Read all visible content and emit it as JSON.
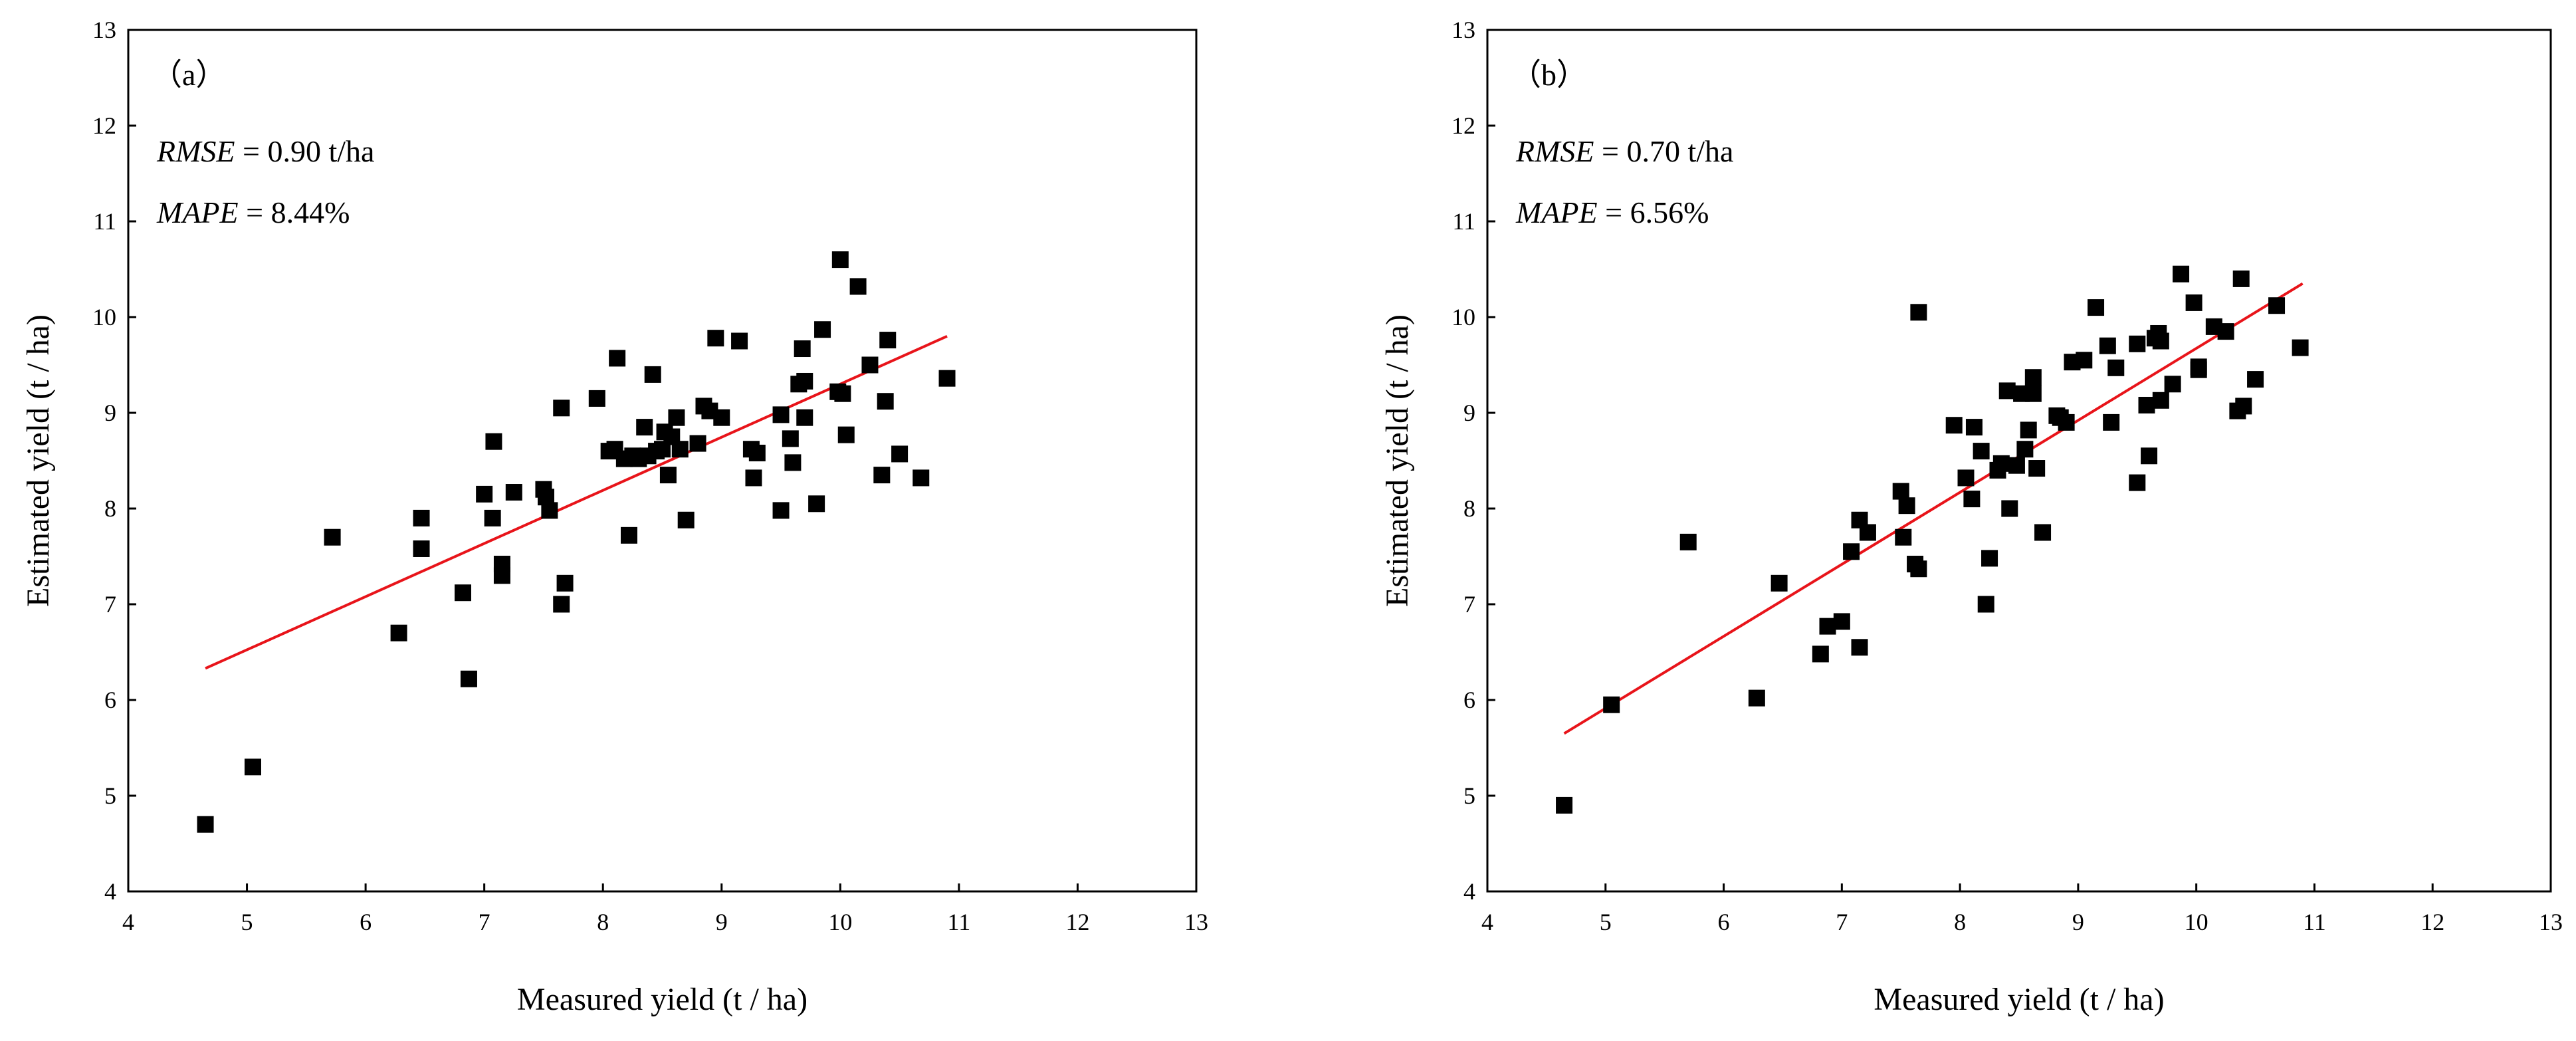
{
  "chart_data": [
    {
      "type": "scatter",
      "panel_label": "（a）",
      "xlabel": "Measured yield (t / ha)",
      "ylabel": "Estimated yield (t / ha)",
      "xlim": [
        4,
        13
      ],
      "ylim": [
        4,
        13
      ],
      "xticks": [
        "4",
        "5",
        "6",
        "7",
        "8",
        "9",
        "10",
        "11",
        "12",
        "13"
      ],
      "yticks": [
        "4",
        "5",
        "6",
        "7",
        "8",
        "9",
        "10",
        "11",
        "12",
        "13"
      ],
      "stats": [
        {
          "name": "RMSE",
          "value": " = 0.90 t/ha"
        },
        {
          "name": "MAPE",
          "value": " = 8.44%"
        }
      ],
      "fit_line": {
        "x": [
          4.65,
          10.9
        ],
        "y": [
          6.33,
          9.8
        ],
        "color": "#e8141a"
      },
      "marker_color": "#000000",
      "points": [
        [
          4.65,
          4.7
        ],
        [
          5.05,
          5.3
        ],
        [
          5.72,
          7.7
        ],
        [
          6.28,
          6.7
        ],
        [
          6.47,
          7.9
        ],
        [
          6.47,
          7.58
        ],
        [
          6.82,
          7.12
        ],
        [
          6.87,
          6.22
        ],
        [
          7.0,
          8.15
        ],
        [
          7.07,
          7.9
        ],
        [
          7.08,
          8.7
        ],
        [
          7.15,
          7.42
        ],
        [
          7.15,
          7.3
        ],
        [
          7.25,
          8.17
        ],
        [
          7.5,
          8.2
        ],
        [
          7.52,
          8.12
        ],
        [
          7.55,
          7.98
        ],
        [
          7.65,
          9.05
        ],
        [
          7.65,
          7.0
        ],
        [
          7.68,
          7.22
        ],
        [
          7.95,
          9.15
        ],
        [
          8.05,
          8.6
        ],
        [
          8.1,
          8.62
        ],
        [
          8.12,
          9.57
        ],
        [
          8.18,
          8.52
        ],
        [
          8.22,
          7.72
        ],
        [
          8.25,
          8.55
        ],
        [
          8.3,
          8.52
        ],
        [
          8.35,
          8.85
        ],
        [
          8.38,
          8.55
        ],
        [
          8.42,
          9.4
        ],
        [
          8.45,
          8.6
        ],
        [
          8.5,
          8.62
        ],
        [
          8.52,
          8.8
        ],
        [
          8.55,
          8.35
        ],
        [
          8.58,
          8.75
        ],
        [
          8.62,
          8.95
        ],
        [
          8.65,
          8.62
        ],
        [
          8.7,
          7.88
        ],
        [
          8.8,
          8.68
        ],
        [
          8.85,
          9.07
        ],
        [
          8.9,
          9.02
        ],
        [
          8.95,
          9.78
        ],
        [
          9.0,
          8.95
        ],
        [
          9.15,
          9.75
        ],
        [
          9.25,
          8.62
        ],
        [
          9.27,
          8.32
        ],
        [
          9.3,
          8.58
        ],
        [
          9.5,
          8.98
        ],
        [
          9.5,
          7.98
        ],
        [
          9.58,
          8.73
        ],
        [
          9.6,
          8.48
        ],
        [
          9.65,
          9.3
        ],
        [
          9.68,
          9.67
        ],
        [
          9.7,
          9.33
        ],
        [
          9.7,
          8.95
        ],
        [
          9.8,
          8.05
        ],
        [
          9.85,
          9.87
        ],
        [
          9.98,
          9.22
        ],
        [
          10.0,
          10.6
        ],
        [
          10.02,
          9.2
        ],
        [
          10.05,
          8.77
        ],
        [
          10.15,
          10.32
        ],
        [
          10.25,
          9.5
        ],
        [
          10.35,
          8.35
        ],
        [
          10.38,
          9.12
        ],
        [
          10.4,
          9.76
        ],
        [
          10.5,
          8.57
        ],
        [
          10.68,
          8.32
        ],
        [
          10.9,
          9.36
        ]
      ]
    },
    {
      "type": "scatter",
      "panel_label": "（b）",
      "xlabel": "Measured yield (t / ha)",
      "ylabel": "Estimated yield (t / ha)",
      "xlim": [
        4,
        13
      ],
      "ylim": [
        4,
        13
      ],
      "xticks": [
        "4",
        "5",
        "6",
        "7",
        "8",
        "9",
        "10",
        "11",
        "12",
        "13"
      ],
      "yticks": [
        "4",
        "5",
        "6",
        "7",
        "8",
        "9",
        "10",
        "11",
        "12",
        "13"
      ],
      "stats": [
        {
          "name": "RMSE",
          "value": " = 0.70 t/ha"
        },
        {
          "name": "MAPE",
          "value": " = 6.56%"
        }
      ],
      "fit_line": {
        "x": [
          4.65,
          10.9
        ],
        "y": [
          5.65,
          10.35
        ],
        "color": "#e8141a"
      },
      "marker_color": "#000000",
      "points": [
        [
          4.65,
          4.9
        ],
        [
          5.05,
          5.95
        ],
        [
          5.7,
          7.65
        ],
        [
          6.28,
          6.02
        ],
        [
          6.47,
          7.22
        ],
        [
          6.82,
          6.48
        ],
        [
          6.88,
          6.77
        ],
        [
          7.0,
          6.82
        ],
        [
          7.08,
          7.55
        ],
        [
          7.15,
          6.55
        ],
        [
          7.15,
          7.88
        ],
        [
          7.22,
          7.75
        ],
        [
          7.5,
          8.18
        ],
        [
          7.52,
          7.7
        ],
        [
          7.55,
          8.03
        ],
        [
          7.62,
          7.42
        ],
        [
          7.65,
          7.37
        ],
        [
          7.65,
          10.05
        ],
        [
          7.95,
          8.87
        ],
        [
          8.05,
          8.32
        ],
        [
          8.1,
          8.1
        ],
        [
          8.12,
          8.85
        ],
        [
          8.18,
          8.6
        ],
        [
          8.22,
          7.0
        ],
        [
          8.25,
          7.48
        ],
        [
          8.32,
          8.4
        ],
        [
          8.35,
          8.47
        ],
        [
          8.4,
          9.23
        ],
        [
          8.42,
          8.0
        ],
        [
          8.48,
          8.45
        ],
        [
          8.52,
          9.2
        ],
        [
          8.55,
          8.62
        ],
        [
          8.58,
          8.82
        ],
        [
          8.62,
          9.37
        ],
        [
          8.62,
          9.2
        ],
        [
          8.65,
          8.42
        ],
        [
          8.7,
          7.75
        ],
        [
          8.82,
          8.97
        ],
        [
          8.85,
          8.95
        ],
        [
          8.9,
          8.9
        ],
        [
          8.95,
          9.53
        ],
        [
          9.05,
          9.55
        ],
        [
          9.15,
          10.1
        ],
        [
          9.25,
          9.7
        ],
        [
          9.28,
          8.9
        ],
        [
          9.32,
          9.47
        ],
        [
          9.5,
          9.72
        ],
        [
          9.5,
          8.27
        ],
        [
          9.58,
          9.08
        ],
        [
          9.6,
          8.55
        ],
        [
          9.65,
          9.78
        ],
        [
          9.68,
          9.83
        ],
        [
          9.7,
          9.13
        ],
        [
          9.7,
          9.75
        ],
        [
          9.8,
          9.3
        ],
        [
          9.87,
          10.45
        ],
        [
          9.98,
          10.15
        ],
        [
          10.02,
          9.48
        ],
        [
          10.02,
          9.45
        ],
        [
          10.15,
          9.9
        ],
        [
          10.25,
          9.85
        ],
        [
          10.35,
          9.02
        ],
        [
          10.38,
          10.4
        ],
        [
          10.4,
          9.07
        ],
        [
          10.5,
          9.35
        ],
        [
          10.68,
          10.12
        ],
        [
          10.88,
          9.68
        ]
      ]
    }
  ]
}
